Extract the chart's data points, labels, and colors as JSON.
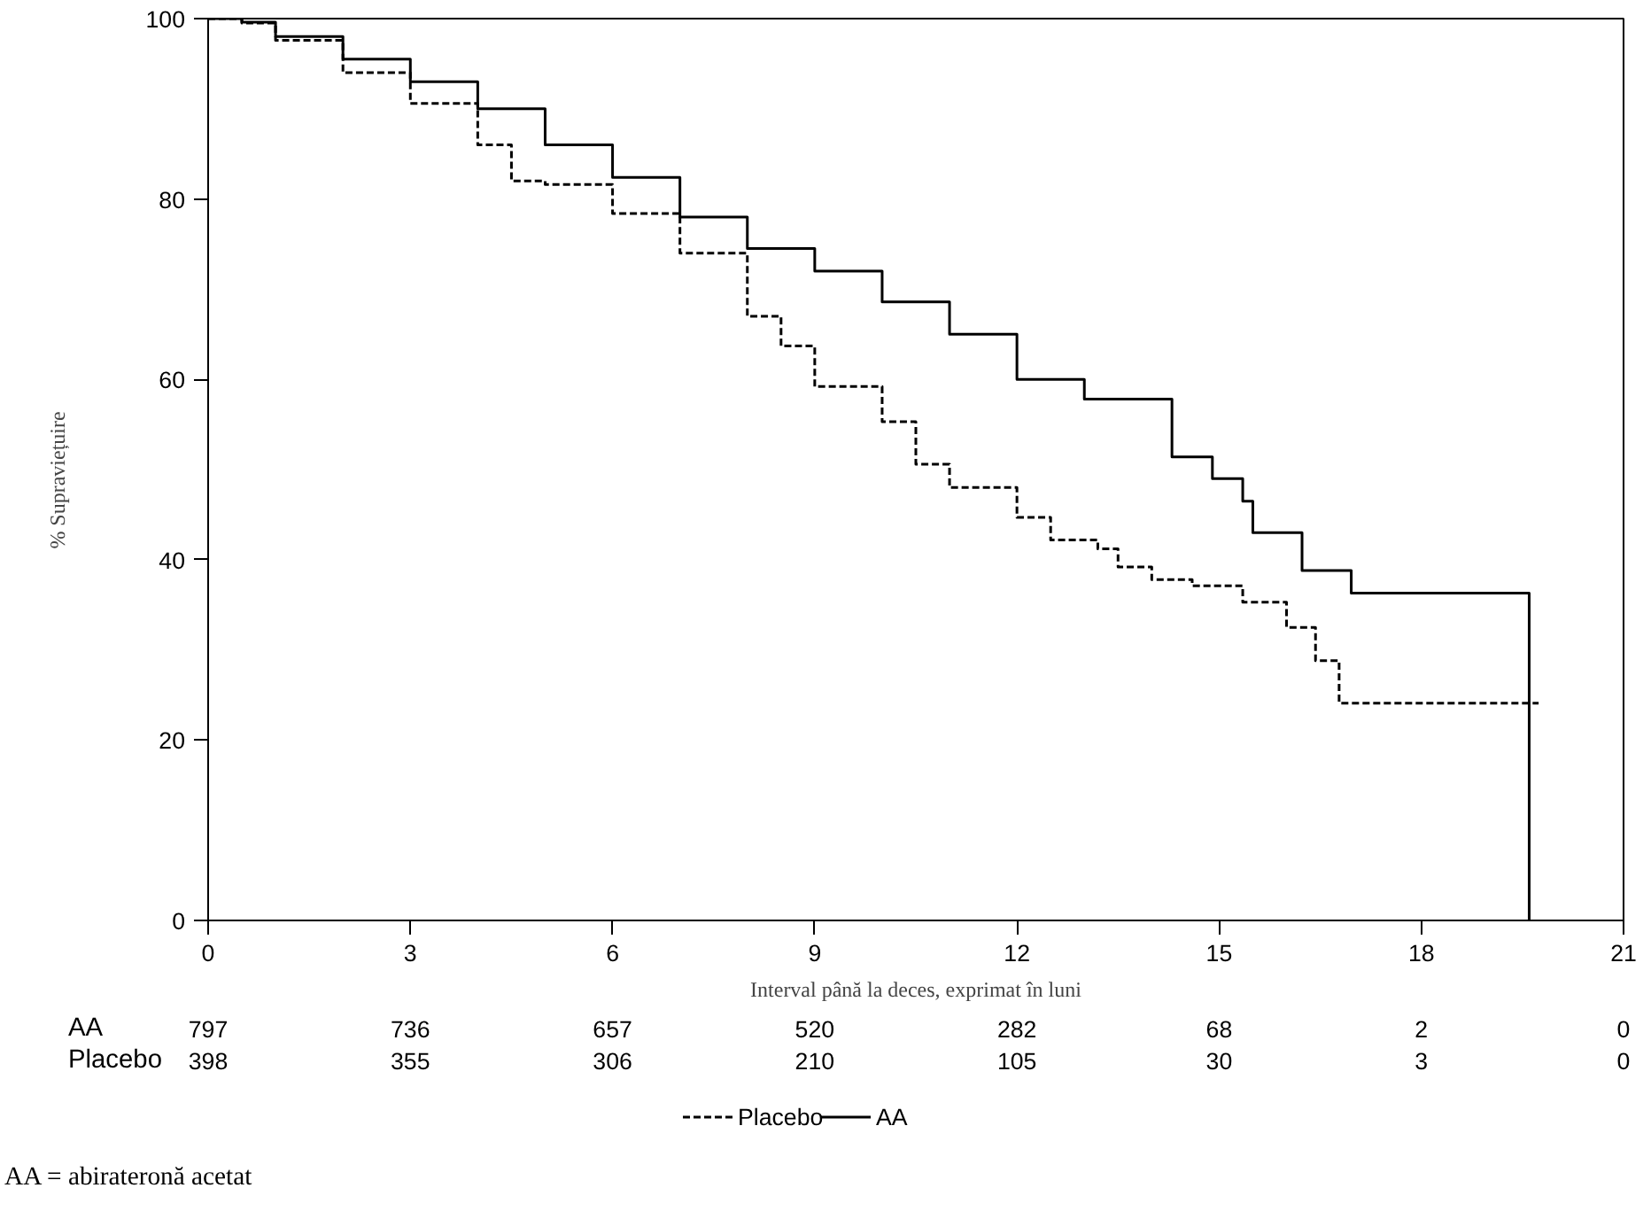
{
  "chart_data": {
    "type": "step",
    "xlabel": "Interval până la deces, exprimat în luni",
    "ylabel": "%     Supraviețuire",
    "xlim": [
      0,
      21
    ],
    "xticks": [
      0,
      3,
      6,
      9,
      12,
      15,
      18,
      21
    ],
    "ylim": [
      0,
      100
    ],
    "yticks": [
      0,
      20,
      40,
      60,
      80,
      100
    ],
    "grid": false,
    "legend": "bottom",
    "marker": "none",
    "series": [
      {
        "name": "Placebo",
        "color": "#000000",
        "line_style": "dashed",
        "x": [
          0,
          0.5,
          1,
          2,
          3,
          4,
          4.5,
          5,
          6,
          7,
          8,
          8.5,
          9,
          10,
          10.5,
          11,
          12,
          12.5,
          13.2,
          13.5,
          14,
          14.6,
          15.35,
          16.0,
          16.43,
          16.78,
          19.74
        ],
        "values": [
          100,
          99.5,
          97.6,
          94,
          90.6,
          86,
          82,
          81.6,
          78.4,
          74,
          67,
          63.7,
          59.2,
          55.3,
          50.6,
          48,
          44.7,
          42.2,
          41.2,
          39.2,
          37.8,
          37.1,
          35.3,
          32.5,
          28.8,
          24.1,
          24.1
        ]
      },
      {
        "name": "AA",
        "color": "#000000",
        "line_style": "solid",
        "x": [
          0,
          0.5,
          1,
          2,
          3,
          4,
          5,
          6,
          7,
          8,
          9,
          10,
          11,
          12,
          13,
          14.3,
          14.9,
          15.35,
          15.5,
          16.23,
          16.96,
          19.6,
          19.6
        ],
        "values": [
          100,
          99.6,
          98,
          95.5,
          93,
          90,
          86,
          82.4,
          78,
          74.5,
          72,
          68.6,
          65,
          60,
          57.8,
          51.4,
          49,
          46.5,
          43,
          38.8,
          36.3,
          36.3,
          0
        ]
      }
    ],
    "annotations": [
      "AA",
      "797",
      "736",
      "657",
      "520",
      "282",
      "68",
      "2",
      "0",
      "Placebo",
      "398",
      "355",
      "306",
      "210",
      "105",
      "30",
      "3",
      "0",
      "AA = abirateronă acetat"
    ]
  }
}
